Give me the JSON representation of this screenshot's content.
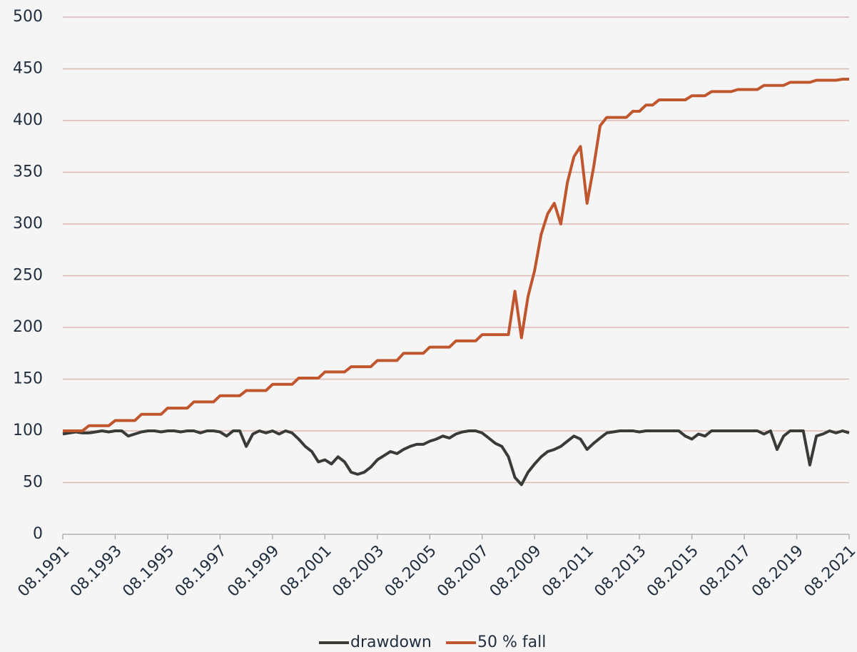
{
  "chart_data": {
    "type": "line",
    "categories": [
      "08.1991",
      null,
      null,
      null,
      null,
      null,
      null,
      null,
      "08.1993",
      null,
      null,
      null,
      null,
      null,
      null,
      null,
      "08.1995",
      null,
      null,
      null,
      null,
      null,
      null,
      null,
      "08.1997",
      null,
      null,
      null,
      null,
      null,
      null,
      null,
      "08.1999",
      null,
      null,
      null,
      null,
      null,
      null,
      null,
      "08.2001",
      null,
      null,
      null,
      null,
      null,
      null,
      null,
      "08.2003",
      null,
      null,
      null,
      null,
      null,
      null,
      null,
      "08.2005",
      null,
      null,
      null,
      null,
      null,
      null,
      null,
      "08.2007",
      null,
      null,
      null,
      null,
      null,
      null,
      null,
      "08.2009",
      null,
      null,
      null,
      null,
      null,
      null,
      null,
      "08.2011",
      null,
      null,
      null,
      null,
      null,
      null,
      null,
      "08.2013",
      null,
      null,
      null,
      null,
      null,
      null,
      null,
      "08.2015",
      null,
      null,
      null,
      null,
      null,
      null,
      null,
      "08.2017",
      null,
      null,
      null,
      null,
      null,
      null,
      null,
      "08.2019",
      null,
      null,
      null,
      null,
      null,
      null,
      null,
      "08.2021"
    ],
    "series": [
      {
        "name": "drawdown",
        "color": "#3a3a37",
        "values": [
          97,
          98,
          99,
          98,
          98,
          99,
          100,
          99,
          100,
          100,
          95,
          97,
          99,
          100,
          100,
          99,
          100,
          100,
          99,
          100,
          100,
          98,
          100,
          100,
          99,
          95,
          100,
          100,
          85,
          97,
          100,
          98,
          100,
          97,
          100,
          98,
          92,
          85,
          80,
          70,
          72,
          68,
          75,
          70,
          60,
          58,
          60,
          65,
          72,
          76,
          80,
          78,
          82,
          85,
          87,
          87,
          90,
          92,
          95,
          93,
          97,
          99,
          100,
          100,
          98,
          93,
          88,
          85,
          75,
          55,
          48,
          60,
          68,
          75,
          80,
          82,
          85,
          90,
          95,
          92,
          82,
          88,
          93,
          98,
          99,
          100,
          100,
          100,
          99,
          100,
          100,
          100,
          100,
          100,
          100,
          95,
          92,
          97,
          95,
          100,
          100,
          100,
          100,
          100,
          100,
          100,
          100,
          97,
          100,
          82,
          95,
          100,
          100,
          100,
          67,
          95,
          97,
          100,
          98,
          100,
          98
        ]
      },
      {
        "name": "50 % fall",
        "color": "#c0562e",
        "values": [
          100,
          100,
          100,
          100,
          105,
          105,
          105,
          105,
          110,
          110,
          110,
          110,
          116,
          116,
          116,
          116,
          122,
          122,
          122,
          122,
          128,
          128,
          128,
          128,
          134,
          134,
          134,
          134,
          139,
          139,
          139,
          139,
          145,
          145,
          145,
          145,
          151,
          151,
          151,
          151,
          157,
          157,
          157,
          157,
          162,
          162,
          162,
          162,
          168,
          168,
          168,
          168,
          175,
          175,
          175,
          175,
          181,
          181,
          181,
          181,
          187,
          187,
          187,
          187,
          193,
          193,
          193,
          193,
          193,
          235,
          190,
          230,
          255,
          290,
          310,
          320,
          300,
          340,
          365,
          375,
          320,
          355,
          395,
          403,
          403,
          403,
          403,
          409,
          409,
          415,
          415,
          420,
          420,
          420,
          420,
          420,
          424,
          424,
          424,
          428,
          428,
          428,
          428,
          430,
          430,
          430,
          430,
          434,
          434,
          434,
          434,
          437,
          437,
          437,
          437,
          439,
          439,
          439,
          439,
          440,
          440
        ]
      }
    ],
    "ylim": [
      0,
      500
    ],
    "yticks": [
      0,
      50,
      100,
      150,
      200,
      250,
      300,
      350,
      400,
      450,
      500
    ],
    "grid": true,
    "legend": "bottom"
  }
}
